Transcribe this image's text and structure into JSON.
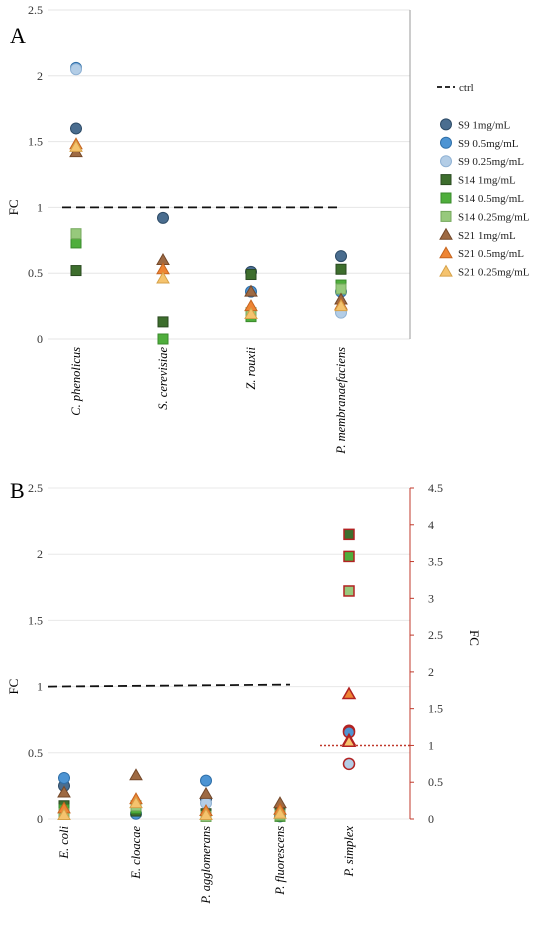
{
  "chart_data": [
    {
      "type": "scatter",
      "panel_label": "A",
      "ylabel": "FC",
      "ylim": [
        0,
        2.5
      ],
      "yticks": [
        0,
        0.5,
        1,
        1.5,
        2,
        2.5
      ],
      "categories": [
        "C. phenolicus",
        "S. cerevisiae",
        "Z. rouxii",
        "P. membranaefaciens"
      ],
      "grid": true,
      "legend": "right",
      "control": {
        "name": "ctrl",
        "value": 1
      },
      "series": [
        {
          "name": "S9 1mg/mL",
          "marker": "circle",
          "color": "#4a6d8f",
          "edge": "#2c4a66",
          "values": [
            1.6,
            0.92,
            0.51,
            0.63
          ]
        },
        {
          "name": "S9 0.5mg/mL",
          "marker": "circle",
          "color": "#4d94d3",
          "edge": "#2f6fa8",
          "values": [
            2.06,
            null,
            0.36,
            0.36
          ]
        },
        {
          "name": "S9 0.25mg/mL",
          "marker": "circle",
          "color": "#b3cde6",
          "edge": "#90b2d4",
          "values": [
            2.05,
            null,
            null,
            0.2
          ]
        },
        {
          "name": "S14 1mg/mL",
          "marker": "square",
          "color": "#3d6e2d",
          "edge": "#2a4a20",
          "values": [
            0.52,
            0.13,
            0.49,
            0.53
          ]
        },
        {
          "name": "S14 0.5mg/mL",
          "marker": "square",
          "color": "#4fae3c",
          "edge": "#3a8a2b",
          "values": [
            0.73,
            0.0,
            0.17,
            0.41
          ]
        },
        {
          "name": "S14 0.25mg/mL",
          "marker": "square",
          "color": "#97c97c",
          "edge": "#74a85c",
          "values": [
            0.8,
            null,
            0.2,
            0.38
          ]
        },
        {
          "name": "S21 1mg/mL",
          "marker": "triangle",
          "color": "#9e6a43",
          "edge": "#74482a",
          "values": [
            1.42,
            0.6,
            0.36,
            0.3
          ]
        },
        {
          "name": "S21 0.5mg/mL",
          "marker": "triangle",
          "color": "#ee8534",
          "edge": "#c56520",
          "values": [
            1.48,
            0.53,
            0.25,
            0.26
          ]
        },
        {
          "name": "S21 0.25mg/mL",
          "marker": "triangle",
          "color": "#f5c36e",
          "edge": "#d6a24a",
          "values": [
            1.46,
            0.46,
            0.19,
            0.25
          ]
        }
      ]
    },
    {
      "type": "scatter",
      "panel_label": "B",
      "ylabel": "FC",
      "y2label": "FC",
      "ylim": [
        0,
        2.5
      ],
      "yticks": [
        0,
        0.5,
        1,
        1.5,
        2,
        2.5
      ],
      "y2lim": [
        0,
        4.5
      ],
      "y2ticks": [
        0,
        0.5,
        1,
        1.5,
        2,
        2.5,
        3,
        3.5,
        4,
        4.5
      ],
      "categories": [
        "E. coli",
        "E. cloacae",
        "P. agglomerans",
        "P. fluorescens",
        "P. simplex"
      ],
      "secondary_axis_category": "P. simplex",
      "control": {
        "name": "ctrl",
        "value": 1,
        "secondary_value": 1
      },
      "series": [
        {
          "name": "S9 1mg/mL",
          "values": [
            0.25,
            null,
            0.15,
            null,
            1.2
          ]
        },
        {
          "name": "S9 0.5mg/mL",
          "values": [
            0.31,
            0.04,
            0.29,
            0.02,
            1.18
          ]
        },
        {
          "name": "S9 0.25mg/mL",
          "values": [
            null,
            null,
            0.12,
            null,
            0.75
          ]
        },
        {
          "name": "S14 1mg/mL",
          "values": [
            0.1,
            0.06,
            0.04,
            0.05,
            3.87
          ]
        },
        {
          "name": "S14 0.5mg/mL",
          "values": [
            0.07,
            0.08,
            0.02,
            0.02,
            3.57
          ]
        },
        {
          "name": "S14 0.25mg/mL",
          "values": [
            0.04,
            0.1,
            0.02,
            0.03,
            3.1
          ]
        },
        {
          "name": "S21 1mg/mL",
          "values": [
            0.2,
            0.33,
            0.19,
            0.12,
            1.07
          ]
        },
        {
          "name": "S21 0.5mg/mL",
          "values": [
            0.08,
            0.15,
            0.06,
            0.07,
            1.7
          ]
        },
        {
          "name": "S21 0.25mg/mL",
          "values": [
            0.03,
            0.12,
            0.03,
            0.04,
            1.05
          ]
        }
      ]
    }
  ]
}
